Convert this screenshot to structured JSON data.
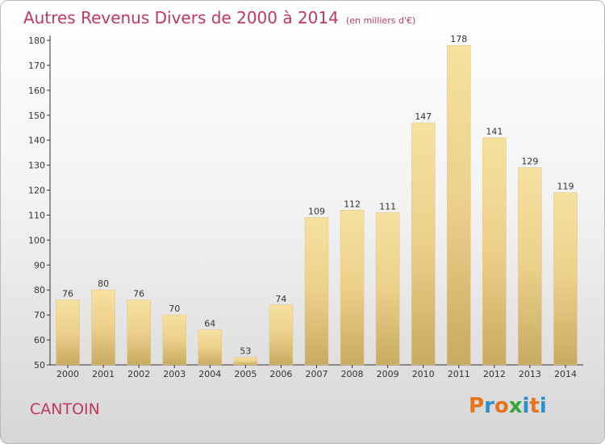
{
  "header": {
    "title": "Autres Revenus Divers de 2000 à 2014",
    "unit": "(en milliers d'€)"
  },
  "footer": {
    "commune": "CANTOIN",
    "logo_text": "Proxiti",
    "logo_colors": [
      "#e8731a",
      "#2a8fd0",
      "#e8731a",
      "#37a837",
      "#2a8fd0",
      "#e8731a",
      "#2a8fd0"
    ]
  },
  "chart_data": {
    "type": "bar",
    "title": "Autres Revenus Divers de 2000 à 2014",
    "subtitle": "(en milliers d'€)",
    "xlabel": "",
    "ylabel": "",
    "categories": [
      "2000",
      "2001",
      "2002",
      "2003",
      "2004",
      "2005",
      "2006",
      "2007",
      "2008",
      "2009",
      "2010",
      "2011",
      "2012",
      "2013",
      "2014"
    ],
    "values": [
      76,
      80,
      76,
      70,
      64,
      53,
      74,
      109,
      112,
      111,
      147,
      178,
      141,
      129,
      119
    ],
    "ylim": [
      50,
      180
    ],
    "yticks": [
      50,
      60,
      70,
      80,
      90,
      100,
      110,
      120,
      130,
      140,
      150,
      160,
      170,
      180
    ],
    "grid": false,
    "data_labels": true,
    "bar_color": "#ecd08a",
    "bar_color_light": "#f6e1a0",
    "bar_color_dark": "#c8ab62"
  }
}
